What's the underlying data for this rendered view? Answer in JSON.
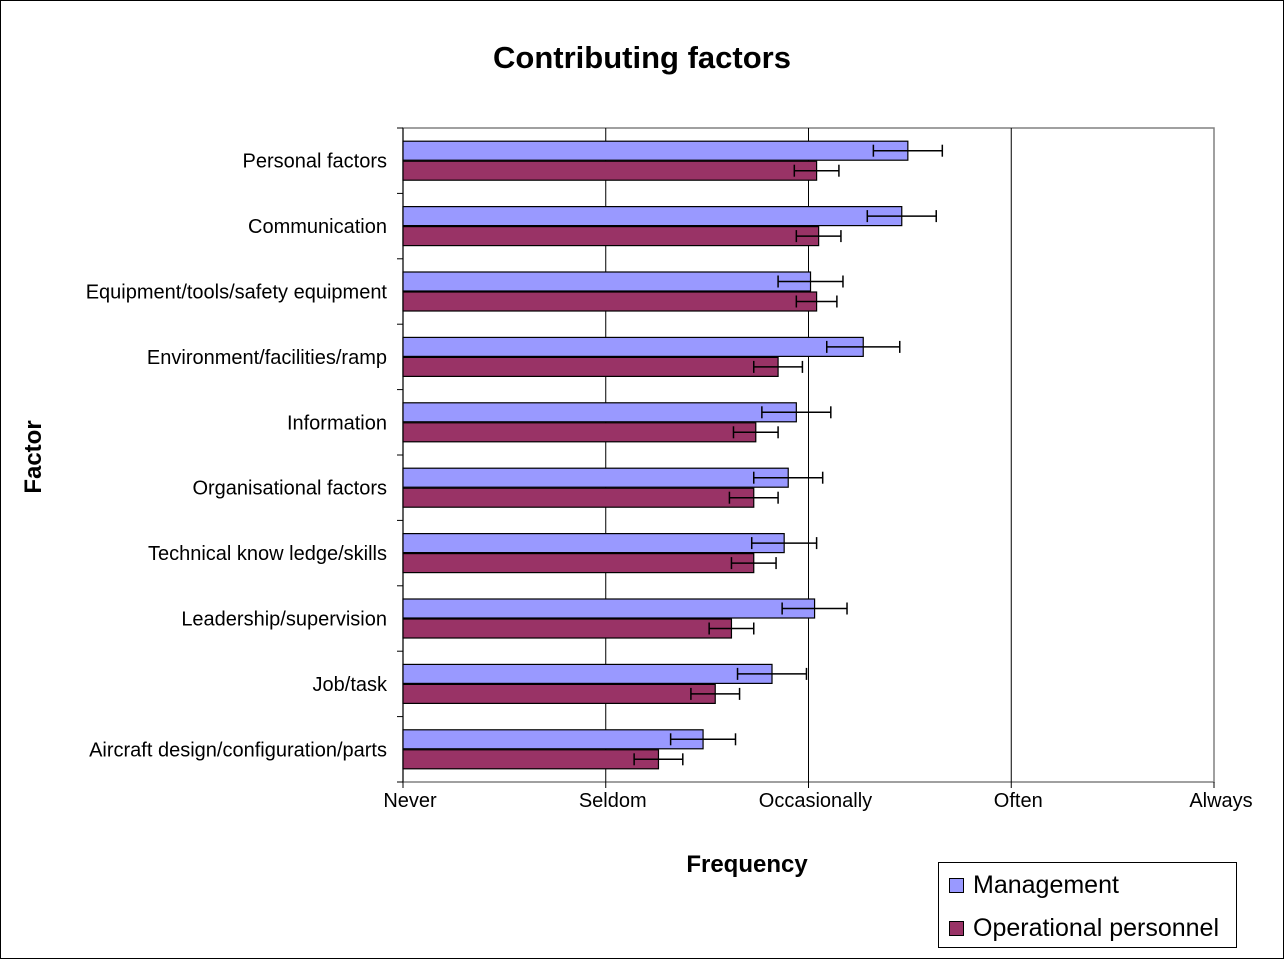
{
  "chart_data": {
    "type": "bar",
    "orientation": "horizontal",
    "title": "Contributing factors",
    "xlabel": "Frequency",
    "ylabel": "Factor",
    "x_ticks": [
      "Never",
      "Seldom",
      "Occasionally",
      "Often",
      "Always"
    ],
    "xlim": [
      1,
      5
    ],
    "categories": [
      "Personal factors",
      "Communication",
      "Equipment/tools/safety equipment",
      "Environment/facilities/ramp",
      "Information",
      "Organisational factors",
      "Technical know ledge/skills",
      "Leadership/supervision",
      "Job/task",
      "Aircraft design/configuration/parts"
    ],
    "series": [
      {
        "name": "Management",
        "color": "#9999ff",
        "values": [
          3.49,
          3.46,
          3.01,
          3.27,
          2.94,
          2.9,
          2.88,
          3.03,
          2.82,
          2.48
        ],
        "error": [
          0.17,
          0.17,
          0.16,
          0.18,
          0.17,
          0.17,
          0.16,
          0.16,
          0.17,
          0.16
        ]
      },
      {
        "name": "Operational personnel",
        "color": "#993366",
        "values": [
          3.04,
          3.05,
          3.04,
          2.85,
          2.74,
          2.73,
          2.73,
          2.62,
          2.54,
          2.26
        ],
        "error": [
          0.11,
          0.11,
          0.1,
          0.12,
          0.11,
          0.12,
          0.11,
          0.11,
          0.12,
          0.12
        ]
      }
    ],
    "grid": "vertical",
    "legend_position": "bottom-right"
  }
}
